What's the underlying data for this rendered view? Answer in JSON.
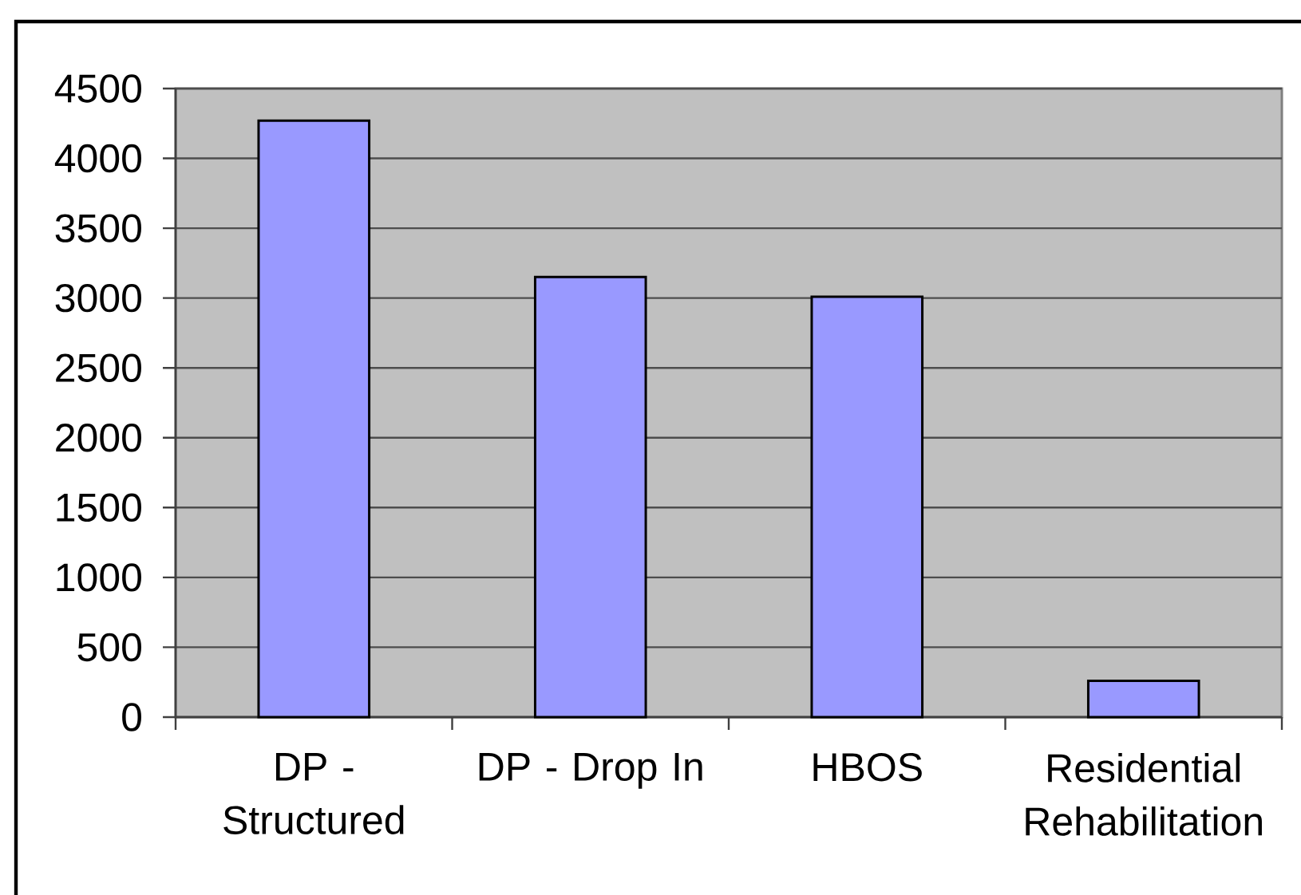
{
  "chart_data": {
    "type": "bar",
    "categories": [
      "DP - Structured",
      "DP - Drop In",
      "HBOS",
      "Residential Rehabilitation"
    ],
    "values": [
      4270,
      3150,
      3010,
      260
    ],
    "color": "#9999ff",
    "ylim": [
      0,
      4500
    ],
    "yticks": [
      0,
      500,
      1000,
      1500,
      2000,
      2500,
      3000,
      3500,
      4000,
      4500
    ],
    "grid": "y"
  }
}
